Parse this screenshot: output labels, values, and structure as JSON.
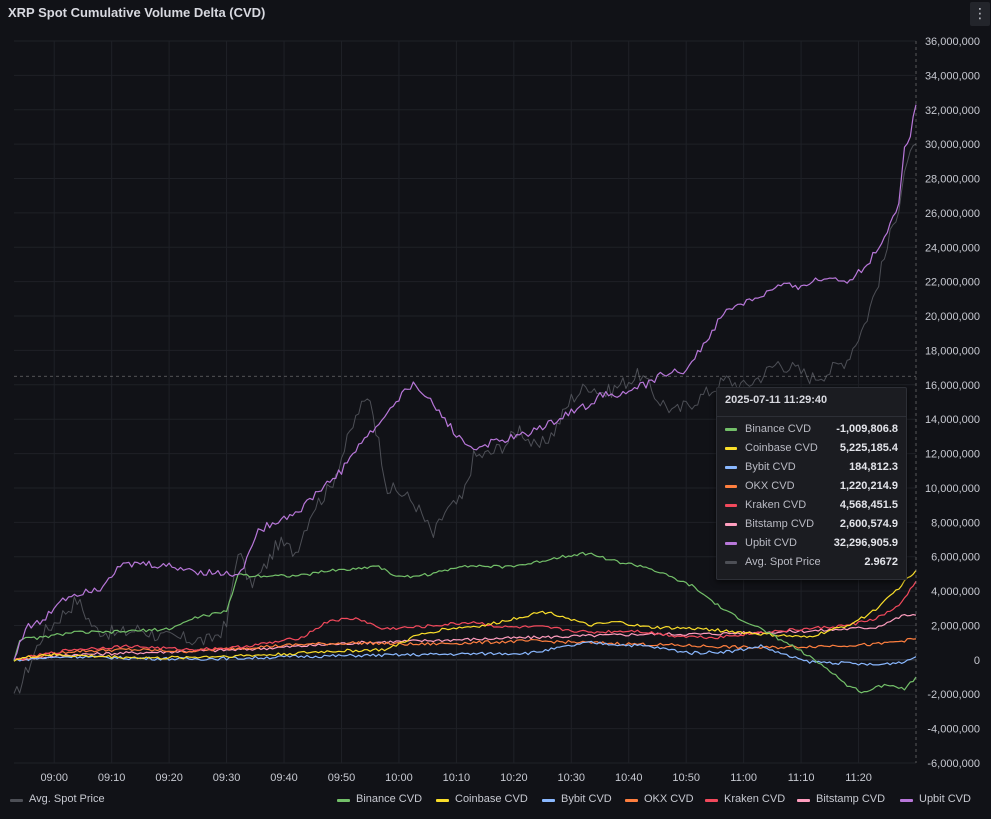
{
  "panel": {
    "title": "XRP Spot Cumulative Volume Delta (CVD)",
    "menu_icon": "kebab-menu-icon"
  },
  "colors": {
    "background": "#111217",
    "grid": "#1f2127",
    "binance": "#73bf69",
    "coinbase": "#fade2a",
    "bybit": "#8ab8ff",
    "okx": "#ff7f3f",
    "kraken": "#f2495c",
    "bitstamp": "#ff9ebf",
    "upbit": "#b877d9",
    "price": "#4d4f56"
  },
  "chart_data": {
    "type": "line",
    "title": "XRP Spot Cumulative Volume Delta (CVD)",
    "x_ticks": [
      "09:00",
      "09:10",
      "09:20",
      "09:30",
      "09:40",
      "09:50",
      "10:00",
      "10:10",
      "10:20",
      "10:30",
      "10:40",
      "10:50",
      "11:00",
      "11:10",
      "11:20"
    ],
    "x_range": [
      "08:53",
      "11:30"
    ],
    "y_ticks": [
      "36,000,000",
      "34,000,000",
      "32,000,000",
      "30,000,000",
      "28,000,000",
      "26,000,000",
      "24,000,000",
      "22,000,000",
      "20,000,000",
      "18,000,000",
      "16,000,000",
      "14,000,000",
      "12,000,000",
      "10,000,000",
      "8,000,000",
      "6,000,000",
      "4,000,000",
      "2,000,000",
      "0",
      "-2,000,000",
      "-4,000,000",
      "-6,000,000"
    ],
    "ylim": [
      -6000000,
      36000000
    ],
    "y_axis_side": "right",
    "grid": true,
    "legend_placement": "bottom",
    "crosshair_y": 16500000,
    "series": [
      {
        "key": "binance",
        "name": "Binance CVD",
        "points": [
          [
            0,
            0
          ],
          [
            1,
            1200000
          ],
          [
            5,
            1300000
          ],
          [
            10,
            1600000
          ],
          [
            16,
            1600000
          ],
          [
            22,
            1700000
          ],
          [
            27,
            1800000
          ],
          [
            32,
            2500000
          ],
          [
            37,
            2800000
          ],
          [
            39,
            5000000
          ],
          [
            41,
            4900000
          ],
          [
            50,
            4900000
          ],
          [
            55,
            5200000
          ],
          [
            60,
            5300000
          ],
          [
            63,
            5500000
          ],
          [
            67,
            4800000
          ],
          [
            73,
            5000000
          ],
          [
            78,
            5500000
          ],
          [
            85,
            5400000
          ],
          [
            90,
            5600000
          ],
          [
            95,
            6000000
          ],
          [
            97,
            6100000
          ],
          [
            100,
            6200000
          ],
          [
            105,
            5700000
          ],
          [
            110,
            5400000
          ],
          [
            118,
            4300000
          ],
          [
            124,
            2800000
          ],
          [
            130,
            1800000
          ],
          [
            136,
            700000
          ],
          [
            142,
            -600000
          ],
          [
            145,
            -1500000
          ],
          [
            148,
            -1900000
          ],
          [
            150,
            -1600000
          ],
          [
            152,
            -1400000
          ],
          [
            155,
            -1700000
          ],
          [
            157,
            -1000000
          ]
        ]
      },
      {
        "key": "coinbase",
        "name": "Coinbase CVD",
        "points": [
          [
            0,
            0
          ],
          [
            5,
            300000
          ],
          [
            15,
            200000
          ],
          [
            25,
            100000
          ],
          [
            35,
            200000
          ],
          [
            45,
            300000
          ],
          [
            55,
            500000
          ],
          [
            65,
            600000
          ],
          [
            70,
            1400000
          ],
          [
            75,
            1800000
          ],
          [
            82,
            2000000
          ],
          [
            87,
            2400000
          ],
          [
            92,
            2800000
          ],
          [
            95,
            2600000
          ],
          [
            100,
            2000000
          ],
          [
            105,
            2200000
          ],
          [
            110,
            1900000
          ],
          [
            120,
            1800000
          ],
          [
            130,
            1500000
          ],
          [
            138,
            1300000
          ],
          [
            142,
            1700000
          ],
          [
            145,
            2000000
          ],
          [
            148,
            2500000
          ],
          [
            151,
            3200000
          ],
          [
            154,
            4200000
          ],
          [
            157,
            5200000
          ]
        ]
      },
      {
        "key": "bybit",
        "name": "Bybit CVD",
        "points": [
          [
            0,
            0
          ],
          [
            10,
            200000
          ],
          [
            20,
            100000
          ],
          [
            30,
            50000
          ],
          [
            40,
            100000
          ],
          [
            50,
            200000
          ],
          [
            60,
            250000
          ],
          [
            70,
            300000
          ],
          [
            80,
            350000
          ],
          [
            90,
            400000
          ],
          [
            100,
            1000000
          ],
          [
            105,
            900000
          ],
          [
            110,
            800000
          ],
          [
            118,
            400000
          ],
          [
            125,
            500000
          ],
          [
            130,
            800000
          ],
          [
            134,
            300000
          ],
          [
            138,
            -100000
          ],
          [
            145,
            -200000
          ],
          [
            150,
            -300000
          ],
          [
            155,
            -100000
          ],
          [
            157,
            184812
          ]
        ]
      },
      {
        "key": "okx",
        "name": "OKX CVD",
        "points": [
          [
            0,
            0
          ],
          [
            10,
            500000
          ],
          [
            20,
            600000
          ],
          [
            30,
            500000
          ],
          [
            40,
            700000
          ],
          [
            50,
            900000
          ],
          [
            60,
            1000000
          ],
          [
            70,
            900000
          ],
          [
            80,
            1000000
          ],
          [
            90,
            1100000
          ],
          [
            100,
            1000000
          ],
          [
            110,
            900000
          ],
          [
            120,
            800000
          ],
          [
            130,
            700000
          ],
          [
            140,
            800000
          ],
          [
            150,
            900000
          ],
          [
            157,
            1220215
          ]
        ]
      },
      {
        "key": "kraken",
        "name": "Kraken CVD",
        "points": [
          [
            0,
            0
          ],
          [
            10,
            600000
          ],
          [
            20,
            800000
          ],
          [
            30,
            600000
          ],
          [
            38,
            700000
          ],
          [
            45,
            1000000
          ],
          [
            50,
            1300000
          ],
          [
            55,
            2300000
          ],
          [
            60,
            2400000
          ],
          [
            64,
            1800000
          ],
          [
            70,
            1900000
          ],
          [
            80,
            2200000
          ],
          [
            85,
            1900000
          ],
          [
            92,
            1900000
          ],
          [
            100,
            1600000
          ],
          [
            108,
            1700000
          ],
          [
            115,
            1400000
          ],
          [
            122,
            1300000
          ],
          [
            130,
            1600000
          ],
          [
            138,
            1800000
          ],
          [
            145,
            2000000
          ],
          [
            150,
            2400000
          ],
          [
            154,
            3100000
          ],
          [
            157,
            4568452
          ]
        ]
      },
      {
        "key": "bitstamp",
        "name": "Bitstamp CVD",
        "points": [
          [
            0,
            0
          ],
          [
            10,
            300000
          ],
          [
            20,
            400000
          ],
          [
            30,
            500000
          ],
          [
            40,
            600000
          ],
          [
            50,
            800000
          ],
          [
            60,
            1000000
          ],
          [
            70,
            1100000
          ],
          [
            80,
            1200000
          ],
          [
            90,
            1300000
          ],
          [
            100,
            1400000
          ],
          [
            110,
            1500000
          ],
          [
            120,
            1500000
          ],
          [
            130,
            1600000
          ],
          [
            140,
            1700000
          ],
          [
            150,
            1900000
          ],
          [
            155,
            2600000
          ],
          [
            157,
            2600575
          ]
        ]
      },
      {
        "key": "upbit",
        "name": "Upbit CVD",
        "points": [
          [
            0,
            0
          ],
          [
            2,
            1900000
          ],
          [
            5,
            2200000
          ],
          [
            8,
            3500000
          ],
          [
            12,
            4000000
          ],
          [
            15,
            4200000
          ],
          [
            18,
            5400000
          ],
          [
            22,
            5600000
          ],
          [
            28,
            5400000
          ],
          [
            33,
            5100000
          ],
          [
            38,
            5000000
          ],
          [
            40,
            5300000
          ],
          [
            42,
            7300000
          ],
          [
            45,
            8000000
          ],
          [
            48,
            8400000
          ],
          [
            50,
            8800000
          ],
          [
            53,
            9800000
          ],
          [
            57,
            11000000
          ],
          [
            60,
            12500000
          ],
          [
            63,
            13500000
          ],
          [
            66,
            14800000
          ],
          [
            68,
            15600000
          ],
          [
            70,
            16100000
          ],
          [
            72,
            15200000
          ],
          [
            75,
            14000000
          ],
          [
            78,
            12700000
          ],
          [
            80,
            12300000
          ],
          [
            84,
            12700000
          ],
          [
            88,
            13000000
          ],
          [
            93,
            13700000
          ],
          [
            96,
            14300000
          ],
          [
            100,
            14800000
          ],
          [
            103,
            15600000
          ],
          [
            106,
            15400000
          ],
          [
            108,
            15800000
          ],
          [
            111,
            16100000
          ],
          [
            113,
            16700000
          ],
          [
            116,
            16700000
          ],
          [
            118,
            17300000
          ],
          [
            120,
            18300000
          ],
          [
            123,
            19900000
          ],
          [
            125,
            20500000
          ],
          [
            128,
            20900000
          ],
          [
            131,
            21300000
          ],
          [
            133,
            21700000
          ],
          [
            136,
            21700000
          ],
          [
            139,
            22000000
          ],
          [
            142,
            22200000
          ],
          [
            145,
            22100000
          ],
          [
            148,
            22800000
          ],
          [
            150,
            23700000
          ],
          [
            152,
            25000000
          ],
          [
            154,
            26600000
          ],
          [
            155,
            29800000
          ],
          [
            156,
            30500000
          ],
          [
            157,
            32296906
          ]
        ]
      },
      {
        "key": "price",
        "name": "Avg. Spot Price",
        "points": [
          [
            0,
            -2300000
          ],
          [
            2,
            -800000
          ],
          [
            5,
            1500000
          ],
          [
            8,
            2500000
          ],
          [
            11,
            3500000
          ],
          [
            14,
            1800000
          ],
          [
            18,
            1500000
          ],
          [
            22,
            1800000
          ],
          [
            26,
            1300000
          ],
          [
            30,
            1200000
          ],
          [
            34,
            1100000
          ],
          [
            37,
            2000000
          ],
          [
            39,
            6500000
          ],
          [
            41,
            4400000
          ],
          [
            43,
            5000000
          ],
          [
            46,
            6800000
          ],
          [
            49,
            6300000
          ],
          [
            52,
            8800000
          ],
          [
            55,
            10000000
          ],
          [
            58,
            12700000
          ],
          [
            60,
            14500000
          ],
          [
            62,
            15300000
          ],
          [
            63,
            13500000
          ],
          [
            65,
            10000000
          ],
          [
            68,
            9600000
          ],
          [
            70,
            9000000
          ],
          [
            73,
            7200000
          ],
          [
            75,
            8600000
          ],
          [
            78,
            9300000
          ],
          [
            80,
            11800000
          ],
          [
            83,
            12000000
          ],
          [
            86,
            12700000
          ],
          [
            88,
            13500000
          ],
          [
            91,
            12200000
          ],
          [
            94,
            13300000
          ],
          [
            97,
            15200000
          ],
          [
            100,
            16000000
          ],
          [
            103,
            15500000
          ],
          [
            106,
            16100000
          ],
          [
            109,
            16600000
          ],
          [
            112,
            15200000
          ],
          [
            115,
            14400000
          ],
          [
            118,
            15000000
          ],
          [
            121,
            15600000
          ],
          [
            124,
            16300000
          ],
          [
            127,
            15900000
          ],
          [
            130,
            16500000
          ],
          [
            133,
            17300000
          ],
          [
            136,
            16900000
          ],
          [
            139,
            16400000
          ],
          [
            142,
            16800000
          ],
          [
            145,
            17500000
          ],
          [
            148,
            19500000
          ],
          [
            150,
            21500000
          ],
          [
            152,
            24000000
          ],
          [
            154,
            26500000
          ],
          [
            155,
            28500000
          ],
          [
            157,
            30000000
          ]
        ]
      }
    ]
  },
  "tooltip": {
    "time": "2025-07-11 11:29:40",
    "rows": [
      {
        "label": "Binance CVD",
        "value": "-1,009,806.8",
        "color": "#73bf69"
      },
      {
        "label": "Coinbase CVD",
        "value": "5,225,185.4",
        "color": "#fade2a"
      },
      {
        "label": "Bybit CVD",
        "value": "184,812.3",
        "color": "#8ab8ff"
      },
      {
        "label": "OKX CVD",
        "value": "1,220,214.9",
        "color": "#ff7f3f"
      },
      {
        "label": "Kraken CVD",
        "value": "4,568,451.5",
        "color": "#f2495c"
      },
      {
        "label": "Bitstamp CVD",
        "value": "2,600,574.9",
        "color": "#ff9ebf"
      },
      {
        "label": "Upbit CVD",
        "value": "32,296,905.9",
        "color": "#b877d9"
      },
      {
        "label": "Avg. Spot Price",
        "value": "2.9672",
        "color": "#4d4f56"
      }
    ]
  },
  "legend": [
    {
      "label": "Avg. Spot Price",
      "color": "#4d4f56"
    },
    {
      "label": "Binance CVD",
      "color": "#73bf69"
    },
    {
      "label": "Coinbase CVD",
      "color": "#fade2a"
    },
    {
      "label": "Bybit CVD",
      "color": "#8ab8ff"
    },
    {
      "label": "OKX CVD",
      "color": "#ff7f3f"
    },
    {
      "label": "Kraken CVD",
      "color": "#f2495c"
    },
    {
      "label": "Bitstamp CVD",
      "color": "#ff9ebf"
    },
    {
      "label": "Upbit CVD",
      "color": "#b877d9"
    }
  ]
}
